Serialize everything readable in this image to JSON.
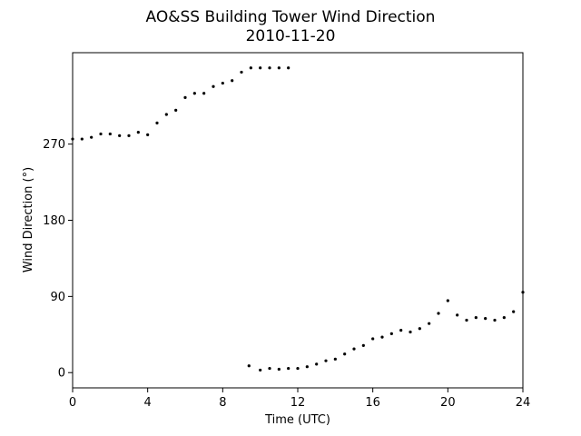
{
  "chart_data": {
    "type": "scatter",
    "title": "AO&SS Building Tower Wind Direction",
    "subtitle": "2010-11-20",
    "xlabel": "Time (UTC)",
    "ylabel": "Wind Direction (°)",
    "xlim": [
      0,
      24
    ],
    "ylim": [
      -18,
      378
    ],
    "x_ticks": [
      0,
      4,
      8,
      12,
      16,
      20,
      24
    ],
    "y_ticks": [
      0,
      90,
      180,
      270
    ],
    "grid": false,
    "legend": "none",
    "marker_color": "#000000",
    "series": [
      {
        "points": [
          [
            0.0,
            276
          ],
          [
            0.5,
            276
          ],
          [
            1.0,
            278
          ],
          [
            1.5,
            282
          ],
          [
            2.0,
            282
          ],
          [
            2.5,
            280
          ],
          [
            3.0,
            280
          ],
          [
            3.5,
            284
          ],
          [
            4.0,
            281
          ],
          [
            4.5,
            295
          ],
          [
            5.0,
            305
          ],
          [
            5.5,
            310
          ],
          [
            6.0,
            325
          ],
          [
            6.5,
            330
          ],
          [
            7.0,
            330
          ],
          [
            7.5,
            338
          ],
          [
            8.0,
            342
          ],
          [
            8.5,
            345
          ],
          [
            9.0,
            355
          ],
          [
            9.5,
            360
          ],
          [
            10.0,
            360
          ],
          [
            10.5,
            360
          ],
          [
            11.0,
            360
          ],
          [
            11.5,
            360
          ],
          [
            9.4,
            8
          ],
          [
            10.0,
            3
          ],
          [
            10.5,
            5
          ],
          [
            11.0,
            4
          ],
          [
            11.5,
            5
          ],
          [
            12.0,
            5
          ],
          [
            12.5,
            7
          ],
          [
            13.0,
            10
          ],
          [
            13.5,
            14
          ],
          [
            14.0,
            16
          ],
          [
            14.5,
            22
          ],
          [
            15.0,
            28
          ],
          [
            15.5,
            32
          ],
          [
            16.0,
            40
          ],
          [
            16.5,
            42
          ],
          [
            17.0,
            46
          ],
          [
            17.5,
            50
          ],
          [
            18.0,
            48
          ],
          [
            18.5,
            52
          ],
          [
            19.0,
            58
          ],
          [
            19.5,
            70
          ],
          [
            20.0,
            85
          ],
          [
            20.5,
            68
          ],
          [
            21.0,
            62
          ],
          [
            21.5,
            65
          ],
          [
            22.0,
            64
          ],
          [
            22.5,
            62
          ],
          [
            23.0,
            65
          ],
          [
            23.5,
            72
          ],
          [
            24.0,
            95
          ]
        ]
      }
    ]
  }
}
